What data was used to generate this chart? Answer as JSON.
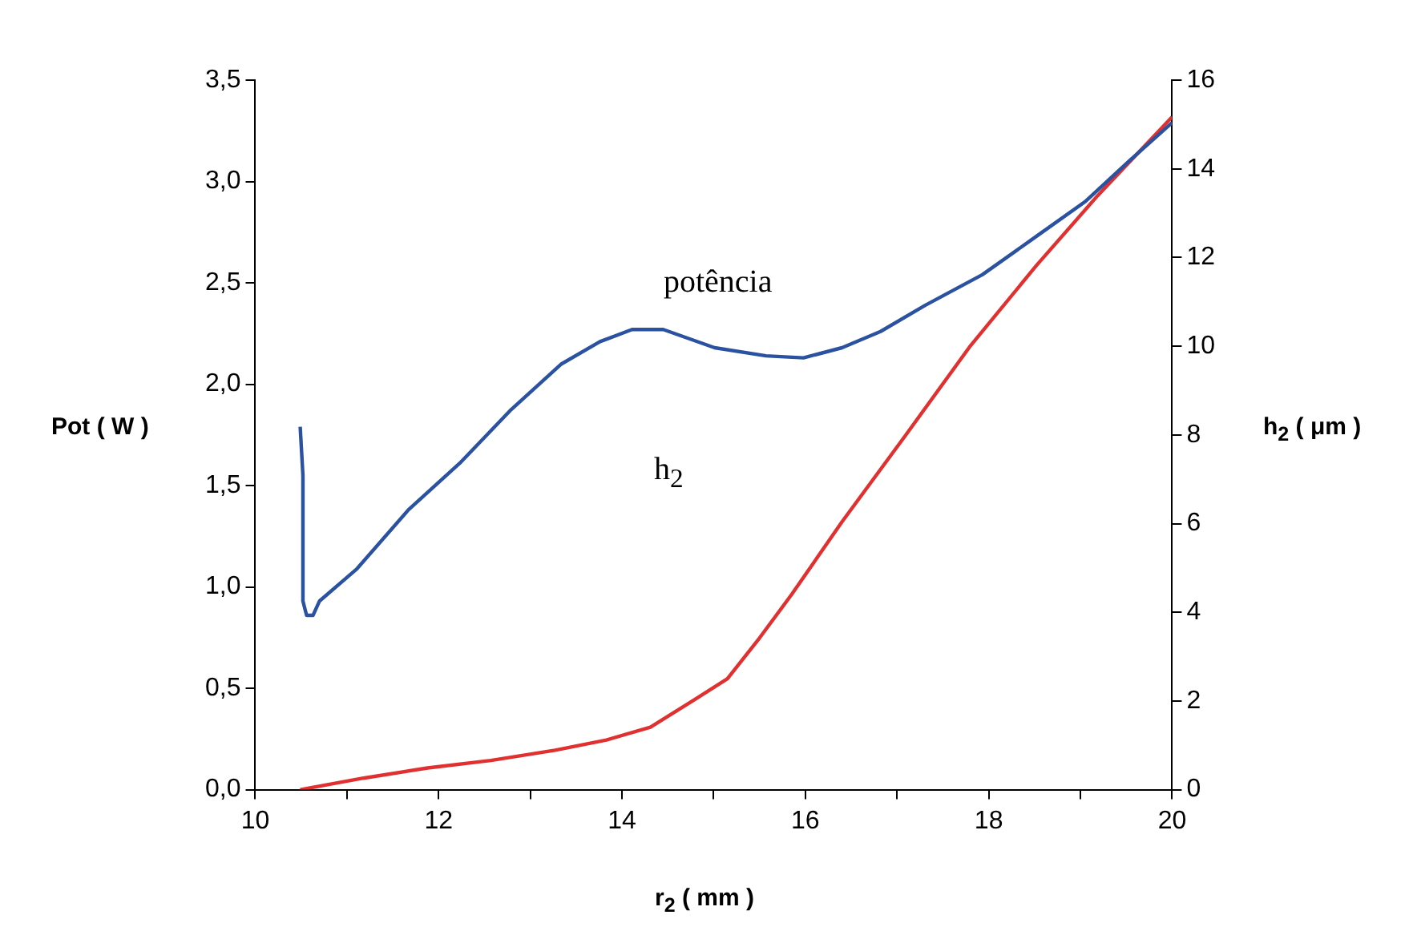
{
  "chart_data": {
    "type": "line",
    "xlabel": "r$_{2}$ ( mm )",
    "ylabel": "Pot ( W )",
    "y2label": "h$_{2}$ ( μm )",
    "xlim": [
      10,
      20
    ],
    "xticks": [
      10,
      12,
      14,
      16,
      18,
      20
    ],
    "ylim": [
      0,
      3.5
    ],
    "yticks": [
      {
        "value": 0,
        "label": "0,0"
      },
      {
        "value": 0.5,
        "label": "0,5"
      },
      {
        "value": 1,
        "label": "1,0"
      },
      {
        "value": 1.5,
        "label": "1,5"
      },
      {
        "value": 2,
        "label": "2,0"
      },
      {
        "value": 2.5,
        "label": "2,5"
      },
      {
        "value": 3,
        "label": "3,0"
      },
      {
        "value": 3.5,
        "label": "3,5"
      }
    ],
    "y2lim": [
      0,
      16
    ],
    "y2ticks": [
      0,
      2,
      4,
      6,
      8,
      10,
      12,
      14,
      16
    ],
    "grid": false,
    "legend": false,
    "marker": "none",
    "line_style": "solid",
    "series": [
      {
        "color": "#2a52a0",
        "x": [
          10.49,
          10.52,
          10.52,
          10.56,
          10.63,
          10.7,
          11.11,
          11.67,
          12.23,
          12.78,
          13.34,
          13.76,
          14.11,
          14.45,
          15.01,
          15.57,
          15.98,
          16.4,
          16.82,
          17.31,
          17.93,
          18.49,
          19.05,
          19.53,
          20
        ],
        "values": [
          1.79,
          1.55,
          0.93,
          0.86,
          0.86,
          0.93,
          1.09,
          1.38,
          1.61,
          1.87,
          2.1,
          2.21,
          2.27,
          2.27,
          2.18,
          2.14,
          2.13,
          2.18,
          2.26,
          2.39,
          2.54,
          2.72,
          2.9,
          3.1,
          3.29
        ]
      },
      {
        "color": "#e03030",
        "axis": "y2",
        "x": [
          10.49,
          11.18,
          11.88,
          12.57,
          13.27,
          13.83,
          14.31,
          14.8,
          15.15,
          15.5,
          15.85,
          16.4,
          17.1,
          17.79,
          18.52,
          19.19,
          20
        ],
        "values": [
          0,
          0.26,
          0.49,
          0.66,
          0.89,
          1.12,
          1.41,
          2.04,
          2.5,
          3.42,
          4.4,
          6.04,
          8.01,
          9.98,
          11.82,
          13.4,
          15.17
        ]
      }
    ],
    "annotations": [
      "potência",
      "h$_{2}$"
    ]
  }
}
